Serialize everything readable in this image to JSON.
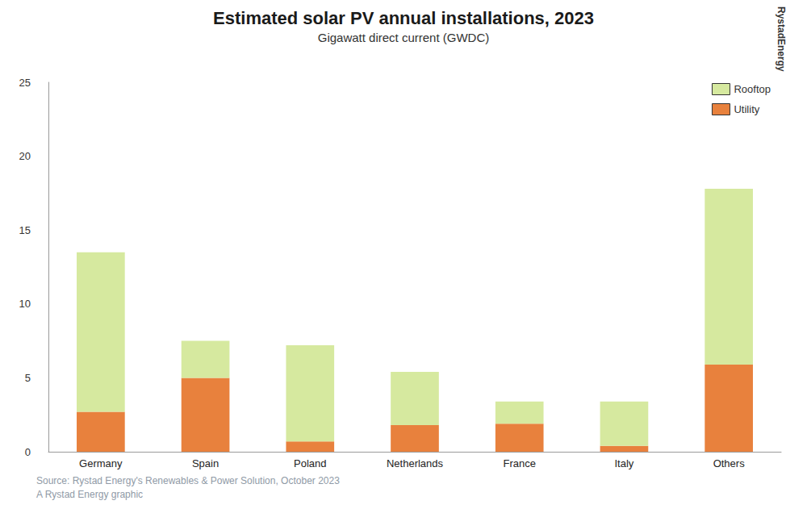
{
  "chart_data": {
    "type": "bar",
    "title": "Estimated solar PV annual installations, 2023",
    "subtitle": "Gigawatt direct current (GWDC)",
    "source": "Source: Rystad Energy's Renewables & Power Solution, October 2023",
    "credit": "A Rystad Energy graphic",
    "logo": "RystadEnergy",
    "categories": [
      "Germany",
      "Spain",
      "Poland",
      "Netherlands",
      "France",
      "Italy",
      "Others"
    ],
    "series": [
      {
        "name": "Rooftop",
        "color": "#d6e99f",
        "values": [
          10.8,
          2.5,
          6.5,
          3.6,
          1.5,
          3.0,
          11.9
        ]
      },
      {
        "name": "Utility",
        "color": "#e8813d",
        "values": [
          2.7,
          5.0,
          0.7,
          1.8,
          1.9,
          0.4,
          5.9
        ]
      }
    ],
    "stacked": true,
    "ylim": [
      0,
      25
    ],
    "yticks": [
      0,
      5,
      10,
      15,
      20,
      25
    ],
    "grid": false,
    "legend": "top-right"
  }
}
